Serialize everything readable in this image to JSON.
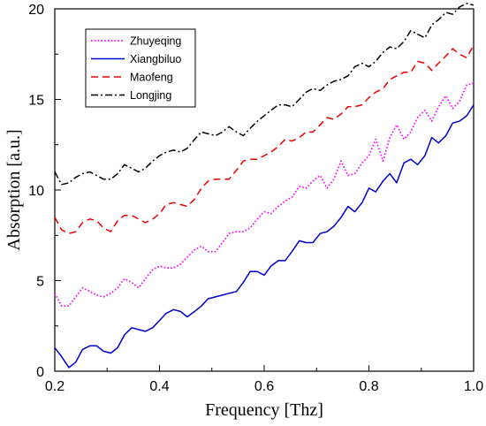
{
  "chart_data": {
    "type": "line",
    "xlabel": "Frequency [Thz]",
    "ylabel": "Absorption [a.u.]",
    "xlim": [
      0.2,
      1.0
    ],
    "ylim": [
      0,
      20
    ],
    "xticks": [
      "0.2",
      "0.4",
      "0.6",
      "0.8",
      "1.0"
    ],
    "yticks": [
      "0",
      "5",
      "10",
      "15",
      "20"
    ],
    "grid": false,
    "legend_position": "top-left",
    "x": [
      0.2,
      0.213,
      0.227,
      0.24,
      0.253,
      0.267,
      0.28,
      0.293,
      0.307,
      0.32,
      0.333,
      0.347,
      0.36,
      0.373,
      0.387,
      0.4,
      0.413,
      0.427,
      0.44,
      0.453,
      0.467,
      0.48,
      0.493,
      0.507,
      0.52,
      0.533,
      0.547,
      0.56,
      0.573,
      0.587,
      0.6,
      0.613,
      0.627,
      0.64,
      0.653,
      0.667,
      0.68,
      0.693,
      0.707,
      0.72,
      0.733,
      0.747,
      0.76,
      0.773,
      0.787,
      0.8,
      0.813,
      0.827,
      0.84,
      0.853,
      0.867,
      0.88,
      0.893,
      0.907,
      0.92,
      0.933,
      0.947,
      0.96,
      0.973,
      0.987,
      1.0
    ],
    "series": [
      {
        "name": "Zhuyeqing",
        "color": "#ff00ff",
        "dash": "dotted",
        "values": [
          4.3,
          3.6,
          3.6,
          4.1,
          4.6,
          4.4,
          4.2,
          4.1,
          4.3,
          4.6,
          5.1,
          4.9,
          4.6,
          5.1,
          5.6,
          5.8,
          5.7,
          5.7,
          5.9,
          6.3,
          6.7,
          6.9,
          6.6,
          6.6,
          7.1,
          7.6,
          7.7,
          7.7,
          7.9,
          8.4,
          8.8,
          8.7,
          9.1,
          9.4,
          9.6,
          10.2,
          10.1,
          10.5,
          10.8,
          10.1,
          10.6,
          11.6,
          10.8,
          10.9,
          11.5,
          11.9,
          12.8,
          11.6,
          12.9,
          13.6,
          12.8,
          13.2,
          14.0,
          14.4,
          13.8,
          14.6,
          15.2,
          14.5,
          14.9,
          15.8,
          15.9
        ]
      },
      {
        "name": "Xiangbiluo",
        "color": "#0000cc",
        "dash": "solid",
        "values": [
          1.3,
          0.8,
          0.2,
          0.5,
          1.2,
          1.4,
          1.4,
          1.1,
          1.0,
          1.3,
          2.0,
          2.4,
          2.3,
          2.2,
          2.4,
          2.8,
          3.2,
          3.4,
          3.3,
          3.0,
          3.3,
          3.6,
          4.0,
          4.1,
          4.2,
          4.3,
          4.4,
          4.9,
          5.5,
          5.5,
          5.3,
          5.8,
          6.1,
          6.1,
          6.6,
          7.2,
          7.1,
          7.1,
          7.6,
          7.7,
          8.0,
          8.5,
          9.1,
          8.8,
          9.3,
          10.1,
          9.9,
          10.5,
          10.9,
          10.4,
          11.5,
          11.7,
          11.4,
          11.9,
          12.9,
          12.6,
          13.0,
          13.7,
          13.8,
          14.1,
          14.7
        ]
      },
      {
        "name": "Maofeng",
        "color": "#ee0000",
        "dash": "dashed",
        "values": [
          8.5,
          7.8,
          7.6,
          7.7,
          8.2,
          8.4,
          8.3,
          7.9,
          7.7,
          8.3,
          8.6,
          8.6,
          8.4,
          8.2,
          8.4,
          8.7,
          9.2,
          9.3,
          9.2,
          9.1,
          9.5,
          10.1,
          10.5,
          10.6,
          10.6,
          10.6,
          11.1,
          11.6,
          11.7,
          11.7,
          11.9,
          12.1,
          12.4,
          12.8,
          12.7,
          12.9,
          13.2,
          13.2,
          13.6,
          14.0,
          13.9,
          14.2,
          14.6,
          14.6,
          14.7,
          15.1,
          15.4,
          15.6,
          16.1,
          16.3,
          16.5,
          16.5,
          17.1,
          17.0,
          16.6,
          17.0,
          17.4,
          17.8,
          17.5,
          17.3,
          18.0
        ]
      },
      {
        "name": "Longjing",
        "color": "#000000",
        "dash": "dash-dot",
        "values": [
          11.0,
          10.3,
          10.4,
          10.7,
          10.9,
          11.0,
          10.8,
          10.6,
          10.6,
          10.9,
          11.4,
          11.2,
          11.0,
          11.2,
          11.6,
          11.9,
          12.1,
          12.2,
          12.1,
          12.3,
          12.8,
          13.2,
          13.1,
          13.0,
          13.2,
          13.5,
          13.2,
          13.0,
          13.4,
          13.8,
          14.1,
          14.4,
          14.7,
          14.7,
          14.6,
          15.0,
          15.4,
          15.6,
          15.5,
          15.8,
          16.0,
          16.1,
          16.3,
          16.8,
          17.0,
          16.8,
          17.1,
          17.6,
          17.9,
          17.8,
          18.2,
          18.8,
          18.6,
          18.4,
          19.1,
          19.4,
          19.8,
          19.7,
          20.1,
          20.3,
          20.2
        ]
      }
    ]
  }
}
